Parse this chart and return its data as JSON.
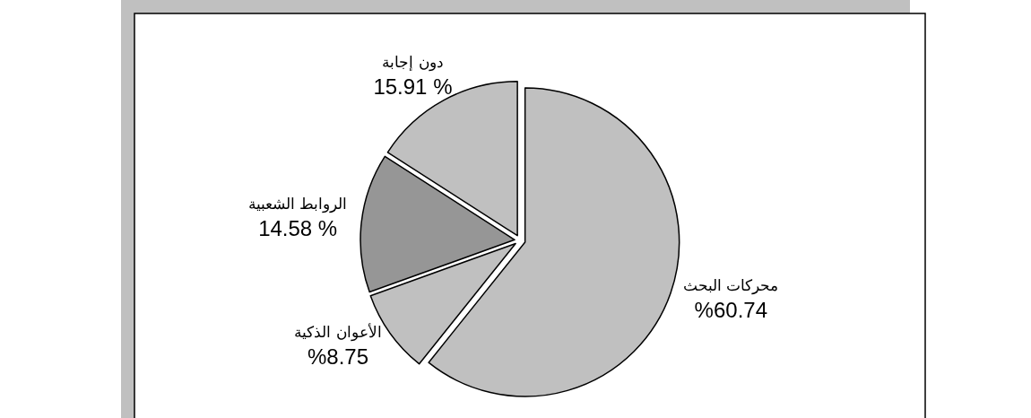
{
  "chart_data": {
    "type": "pie",
    "categories": [
      "محركات البحث",
      "الأعوان الذكية",
      "الروابط الشعبية",
      "دون إجابة"
    ],
    "values": [
      60.74,
      8.75,
      14.58,
      15.91
    ],
    "colors": [
      "#c0c0c0",
      "#c0c0c0",
      "#969696",
      "#c0c0c0"
    ],
    "value_labels": [
      "%60.74",
      "%8.75",
      "14.58 %",
      "15.91 %"
    ]
  }
}
